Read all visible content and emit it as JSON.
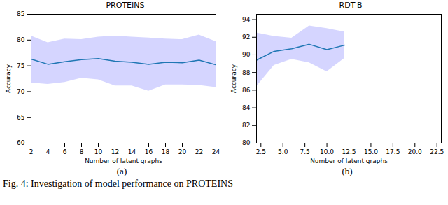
{
  "chart_data": [
    {
      "type": "line",
      "title": "PROTEINS",
      "subcaption": "(a)",
      "x_label": "Number of latent graphs",
      "y_label": "Accuracy",
      "x": [
        2,
        4,
        6,
        8,
        10,
        12,
        14,
        16,
        18,
        20,
        22,
        24
      ],
      "series": [
        {
          "name": "Accuracy",
          "color": "#1f77b4",
          "band_color": "#b3b3ff",
          "values": [
            76.3,
            75.3,
            75.8,
            76.2,
            76.4,
            75.9,
            75.7,
            75.3,
            75.7,
            75.6,
            76.1,
            75.2
          ],
          "lower": [
            71.7,
            71.4,
            71.8,
            72.6,
            72.3,
            71.1,
            71.1,
            70.1,
            71.3,
            71.3,
            71.2,
            70.8
          ],
          "upper": [
            80.8,
            79.5,
            80.2,
            80.1,
            80.6,
            80.8,
            80.6,
            80.4,
            80.2,
            80.1,
            81.0,
            79.7
          ]
        }
      ],
      "xlim": [
        2,
        24
      ],
      "xticks": [
        2,
        4,
        6,
        8,
        10,
        12,
        14,
        16,
        18,
        20,
        22,
        24
      ],
      "ylim": [
        60,
        85
      ],
      "yticks": [
        60,
        65,
        70,
        75,
        80,
        85
      ],
      "grid": false
    },
    {
      "type": "line",
      "title": "RDT-B",
      "subcaption": "(b)",
      "x_label": "Number of latent graphs",
      "y_label": "Accuracy",
      "x": [
        2,
        4,
        6,
        8,
        10,
        12
      ],
      "series": [
        {
          "name": "Accuracy",
          "color": "#1f77b4",
          "band_color": "#b3b3ff",
          "values": [
            89.4,
            90.4,
            90.7,
            91.2,
            90.6,
            91.1
          ],
          "lower": [
            86.4,
            88.8,
            89.5,
            89.1,
            88.1,
            89.6
          ],
          "upper": [
            92.5,
            92.1,
            91.9,
            93.3,
            93.0,
            92.6
          ]
        }
      ],
      "xlim": [
        2,
        23
      ],
      "xticks": [
        {
          "value": 2.5,
          "label": "2.5"
        },
        {
          "value": 5,
          "label": "5.0"
        },
        {
          "value": 7.5,
          "label": "7.5"
        },
        {
          "value": 10,
          "label": "10.0"
        },
        {
          "value": 12.5,
          "label": "12.5"
        },
        {
          "value": 15,
          "label": "15.0"
        },
        {
          "value": 17.5,
          "label": "17.5"
        },
        {
          "value": 20,
          "label": "20.0"
        },
        {
          "value": 22.5,
          "label": "22.5"
        }
      ],
      "ylim": [
        80,
        94.6
      ],
      "yticks": [
        80,
        82,
        84,
        86,
        88,
        90,
        92,
        94
      ],
      "grid": false
    }
  ],
  "figure_caption": "Fig. 4: Investigation of model performance on PROTEINS"
}
